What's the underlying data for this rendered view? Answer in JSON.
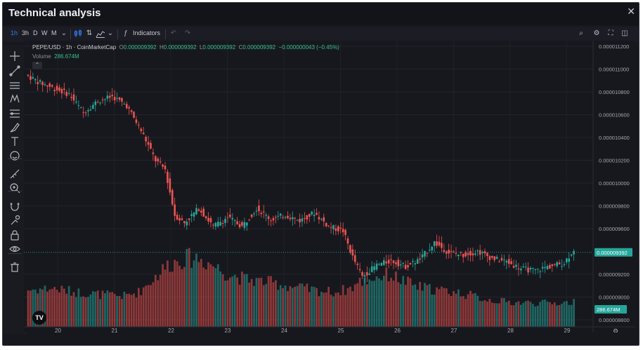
{
  "window": {
    "title": "Technical analysis",
    "close_icon": "close-icon"
  },
  "toolbar": {
    "intervals": [
      "1h",
      "3h",
      "D",
      "W",
      "M"
    ],
    "active_interval": "1h",
    "indicators_label": "Indicators",
    "accent": "#2f7cf6"
  },
  "left_tools": [
    "crosshair-icon",
    "trend-line-icon",
    "horizontal-lines-icon",
    "pattern-icon",
    "fib-icon",
    "brush-icon",
    "text-icon",
    "emoji-icon",
    "ruler-icon",
    "zoom-in-icon",
    "magnet-icon",
    "lock-draw-icon",
    "lock-icon",
    "eye-icon",
    "trash-icon"
  ],
  "legend": {
    "symbol": "PEPE/USD · 1h · CoinMarketCap",
    "o_label": "O",
    "o": "0.000009392",
    "h_label": "H",
    "h": "0.000009392",
    "l_label": "L",
    "l": "0.000009392",
    "c_label": "C",
    "c": "0.000009392",
    "change": "−0.000000043 (−0.45%)",
    "volume_label": "Volume",
    "volume": "286.674M"
  },
  "tv_logo": "TV",
  "chart_data": {
    "type": "candlestick",
    "up_color": "#26a69a",
    "down_color": "#ef5350",
    "x_ticks": [
      "20",
      "21",
      "22",
      "23",
      "24",
      "25",
      "26",
      "27",
      "28",
      "29"
    ],
    "y_ticks": [
      "0.000011200",
      "0.000011000",
      "0.000010800",
      "0.000010600",
      "0.000010400",
      "0.000010200",
      "0.000010000",
      "0.000009800",
      "0.000009600",
      "0.000009200",
      "0.000009000",
      "0.000008800"
    ],
    "ylim": [
      8.8e-06,
      1.12e-05
    ],
    "last_price": "0.000009392",
    "last_volume": "286.674M",
    "price_path": [
      [
        0,
        10.95
      ],
      [
        6,
        10.88
      ],
      [
        12,
        10.83
      ],
      [
        18,
        10.78
      ],
      [
        24,
        10.62
      ],
      [
        30,
        10.72
      ],
      [
        36,
        10.76
      ],
      [
        42,
        10.68
      ],
      [
        48,
        10.46
      ],
      [
        54,
        10.2
      ],
      [
        58,
        10.12
      ],
      [
        62,
        9.72
      ],
      [
        66,
        9.65
      ],
      [
        72,
        9.78
      ],
      [
        78,
        9.62
      ],
      [
        84,
        9.7
      ],
      [
        90,
        9.62
      ],
      [
        96,
        9.78
      ],
      [
        102,
        9.68
      ],
      [
        108,
        9.72
      ],
      [
        114,
        9.67
      ],
      [
        120,
        9.74
      ],
      [
        126,
        9.62
      ],
      [
        132,
        9.58
      ],
      [
        136,
        9.35
      ],
      [
        140,
        9.18
      ],
      [
        146,
        9.28
      ],
      [
        152,
        9.32
      ],
      [
        158,
        9.27
      ],
      [
        164,
        9.33
      ],
      [
        170,
        9.48
      ],
      [
        176,
        9.39
      ],
      [
        182,
        9.37
      ],
      [
        188,
        9.4
      ],
      [
        194,
        9.34
      ],
      [
        200,
        9.31
      ],
      [
        206,
        9.25
      ],
      [
        212,
        9.23
      ],
      [
        216,
        9.26
      ],
      [
        220,
        9.28
      ],
      [
        224,
        9.3
      ],
      [
        228,
        9.42
      ]
    ],
    "volume_profile": [
      [
        0,
        0.48
      ],
      [
        10,
        0.5
      ],
      [
        20,
        0.45
      ],
      [
        30,
        0.42
      ],
      [
        40,
        0.4
      ],
      [
        46,
        0.45
      ],
      [
        52,
        0.62
      ],
      [
        58,
        0.8
      ],
      [
        64,
        0.88
      ],
      [
        70,
        0.9
      ],
      [
        76,
        0.82
      ],
      [
        82,
        0.7
      ],
      [
        90,
        0.62
      ],
      [
        100,
        0.58
      ],
      [
        110,
        0.52
      ],
      [
        120,
        0.47
      ],
      [
        128,
        0.45
      ],
      [
        134,
        0.5
      ],
      [
        138,
        0.58
      ],
      [
        144,
        0.64
      ],
      [
        150,
        0.68
      ],
      [
        156,
        0.6
      ],
      [
        162,
        0.52
      ],
      [
        170,
        0.48
      ],
      [
        180,
        0.44
      ],
      [
        190,
        0.36
      ],
      [
        200,
        0.32
      ],
      [
        210,
        0.31
      ],
      [
        220,
        0.31
      ],
      [
        228,
        0.32
      ]
    ]
  }
}
